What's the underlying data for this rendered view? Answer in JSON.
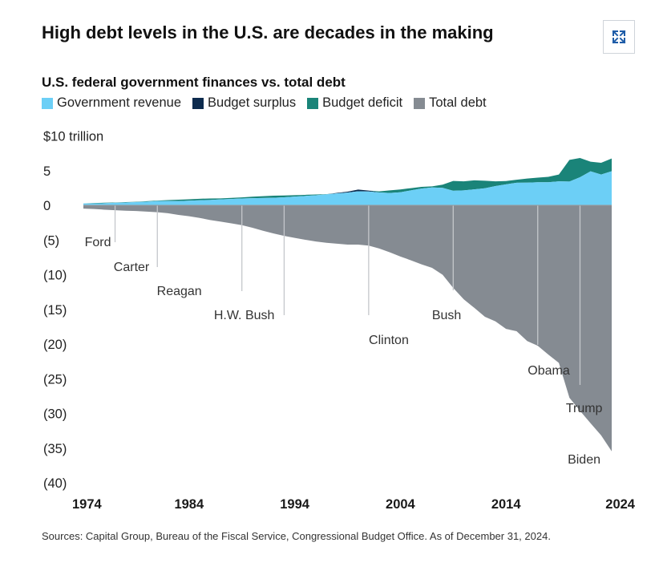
{
  "header": {
    "title": "High debt levels in the U.S. are decades in the making",
    "expand_icon": "expand-arrows-icon"
  },
  "chart_data": {
    "type": "area",
    "title": "U.S. federal government finances vs. total debt",
    "ylabel": "$10 trillion",
    "ylim": [
      -40,
      10
    ],
    "xlim": [
      1974,
      2024
    ],
    "y_ticks": [
      "$10 trillion",
      "5",
      "0",
      "(5)",
      "(10)",
      "(15)",
      "(20)",
      "(25)",
      "(30)",
      "(35)",
      "(40)"
    ],
    "y_tick_values": [
      10,
      5,
      0,
      -5,
      -10,
      -15,
      -20,
      -25,
      -30,
      -35,
      -40
    ],
    "x_ticks": [
      "1974",
      "1984",
      "1994",
      "2004",
      "2014",
      "2024"
    ],
    "x_tick_values": [
      1974,
      1984,
      1994,
      2004,
      2014,
      2024
    ],
    "legend": [
      {
        "name": "Government revenue",
        "color": "#6ccff6"
      },
      {
        "name": "Budget surplus",
        "color": "#0d2b4e"
      },
      {
        "name": "Budget deficit",
        "color": "#1a8479"
      },
      {
        "name": "Total debt",
        "color": "#858b92"
      }
    ],
    "x": [
      1974,
      1975,
      1976,
      1977,
      1978,
      1979,
      1980,
      1981,
      1982,
      1983,
      1984,
      1985,
      1986,
      1987,
      1988,
      1989,
      1990,
      1991,
      1992,
      1993,
      1994,
      1995,
      1996,
      1997,
      1998,
      1999,
      2000,
      2001,
      2002,
      2003,
      2004,
      2005,
      2006,
      2007,
      2008,
      2009,
      2010,
      2011,
      2012,
      2013,
      2014,
      2015,
      2016,
      2017,
      2018,
      2019,
      2020,
      2021,
      2022,
      2023,
      2024
    ],
    "series": [
      {
        "name": "Government revenue",
        "values": [
          0.26,
          0.28,
          0.3,
          0.36,
          0.4,
          0.46,
          0.52,
          0.6,
          0.62,
          0.6,
          0.67,
          0.73,
          0.77,
          0.85,
          0.91,
          0.99,
          1.03,
          1.05,
          1.09,
          1.15,
          1.26,
          1.35,
          1.45,
          1.58,
          1.72,
          1.83,
          2.03,
          1.99,
          1.85,
          1.78,
          1.88,
          2.15,
          2.41,
          2.57,
          2.52,
          2.1,
          2.16,
          2.3,
          2.45,
          2.78,
          3.02,
          3.25,
          3.27,
          3.32,
          3.33,
          3.46,
          3.42,
          4.05,
          4.9,
          4.44,
          4.92
        ]
      },
      {
        "name": "Budget surplus",
        "values": [
          0,
          0,
          0,
          0,
          0,
          0,
          0,
          0,
          0,
          0,
          0,
          0,
          0,
          0,
          0,
          0,
          0,
          0,
          0,
          0,
          0,
          0,
          0,
          0,
          0.07,
          0.13,
          0.24,
          0.13,
          0,
          0,
          0,
          0,
          0,
          0,
          0,
          0,
          0,
          0,
          0,
          0,
          0,
          0,
          0,
          0,
          0,
          0,
          0,
          0,
          0,
          0,
          0
        ]
      },
      {
        "name": "Budget deficit",
        "values": [
          0.01,
          0.05,
          0.07,
          0.05,
          0.06,
          0.04,
          0.07,
          0.08,
          0.13,
          0.21,
          0.19,
          0.21,
          0.22,
          0.15,
          0.16,
          0.15,
          0.22,
          0.27,
          0.29,
          0.26,
          0.2,
          0.16,
          0.11,
          0.02,
          0,
          0,
          0,
          0,
          0.16,
          0.38,
          0.41,
          0.32,
          0.25,
          0.16,
          0.46,
          1.41,
          1.29,
          1.3,
          1.09,
          0.68,
          0.48,
          0.44,
          0.59,
          0.67,
          0.78,
          0.98,
          3.13,
          2.77,
          1.38,
          1.69,
          1.83
        ]
      },
      {
        "name": "Total debt",
        "values": [
          -0.48,
          -0.54,
          -0.63,
          -0.71,
          -0.78,
          -0.83,
          -0.91,
          -1.0,
          -1.14,
          -1.38,
          -1.57,
          -1.82,
          -2.12,
          -2.35,
          -2.6,
          -2.86,
          -3.23,
          -3.67,
          -4.06,
          -4.41,
          -4.69,
          -4.97,
          -5.22,
          -5.41,
          -5.53,
          -5.66,
          -5.67,
          -5.81,
          -6.23,
          -6.78,
          -7.38,
          -7.93,
          -8.51,
          -9.01,
          -10.02,
          -11.91,
          -13.56,
          -14.79,
          -16.07,
          -16.74,
          -17.82,
          -18.15,
          -19.57,
          -20.24,
          -21.52,
          -22.72,
          -27.75,
          -29.62,
          -31.42,
          -33.17,
          -35.46
        ]
      }
    ],
    "annotations": [
      {
        "label": "Ford",
        "x": 1977
      },
      {
        "label": "Carter",
        "x": 1981
      },
      {
        "label": "Reagan",
        "x": 1989
      },
      {
        "label": "H.W. Bush",
        "x": 1993
      },
      {
        "label": "Clinton",
        "x": 2001
      },
      {
        "label": "Bush",
        "x": 2009
      },
      {
        "label": "Obama",
        "x": 2017
      },
      {
        "label": "Trump",
        "x": 2021
      },
      {
        "label": "Biden",
        "x": 2024
      }
    ],
    "grid": false,
    "legend_placement": "top-left"
  },
  "footer": {
    "source": "Sources: Capital Group, Bureau of the Fiscal Service, Congressional Budget Office. As of December 31, 2024."
  }
}
